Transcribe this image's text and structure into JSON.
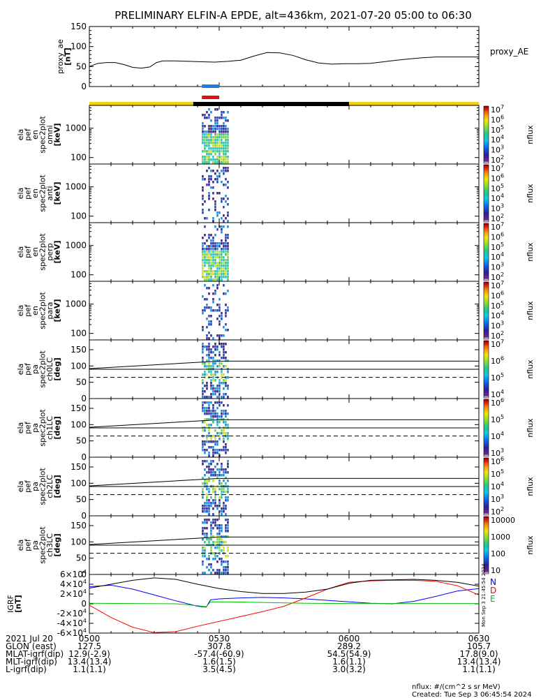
{
  "chart_data": {
    "title": "PRELIMINARY ELFIN-A EPDE, alt=436km, 2021-07-20 05:00 to 06:30",
    "type": "line",
    "x_range": [
      "05:00",
      "06:30"
    ],
    "x_tick_labels": [
      "0500",
      "0530",
      "0600",
      "0630"
    ],
    "proxy_ae": {
      "ylabel": "proxy_ae [nT]",
      "yticks": [
        "150",
        "100",
        "50",
        "0"
      ],
      "ylim": [
        0,
        150
      ],
      "legend": "proxy_AE",
      "series": [
        {
          "name": "proxy_AE",
          "x": [
            0,
            2,
            4,
            6,
            8,
            10,
            12,
            14,
            15.5,
            17,
            20,
            23,
            26,
            29,
            32,
            35,
            38,
            41,
            44,
            47,
            50,
            53,
            56,
            59,
            62,
            65,
            68,
            71,
            74,
            77,
            80,
            83,
            86,
            90
          ],
          "y": [
            50,
            58,
            60,
            60,
            55,
            48,
            46,
            49,
            60,
            64,
            64,
            63,
            62,
            61,
            63,
            66,
            76,
            85,
            84,
            78,
            67,
            59,
            56,
            57,
            57,
            58,
            62,
            66,
            69,
            72,
            74,
            74,
            74,
            74
          ]
        }
      ]
    },
    "orbit_bars": {
      "blue_interval": [
        "05:26",
        "05:30"
      ],
      "red_interval": [
        "05:26",
        "05:30"
      ],
      "yellow_segments": [
        [
          "05:00",
          "05:24"
        ],
        [
          "06:00",
          "06:30"
        ]
      ],
      "black_segment": [
        "05:24",
        "06:00"
      ]
    },
    "spectrograms": [
      {
        "label": [
          "ela",
          "pef",
          "en",
          "spec2plot",
          "omni",
          "[keV]"
        ],
        "yticks": [
          "1000",
          "100"
        ],
        "cbar_ticks": [
          "10^7",
          "10^6",
          "10^5",
          "10^4",
          "10^3",
          "10^2"
        ],
        "cbar_label": "nflux",
        "kind": "energy"
      },
      {
        "label": [
          "ela",
          "pef",
          "en",
          "spec2plot",
          "anti",
          "[keV]"
        ],
        "yticks": [
          "1000",
          "100"
        ],
        "cbar_ticks": [
          "10^7",
          "10^6",
          "10^5",
          "10^4",
          "10^3",
          "10^2"
        ],
        "cbar_label": "nflux",
        "kind": "energy"
      },
      {
        "label": [
          "ela",
          "pef",
          "en",
          "spec2plot",
          "perp",
          "[keV]"
        ],
        "yticks": [
          "1000",
          "100"
        ],
        "cbar_ticks": [
          "10^7",
          "10^6",
          "10^5",
          "10^4",
          "10^3",
          "10^2"
        ],
        "cbar_label": "nflux",
        "kind": "energy"
      },
      {
        "label": [
          "ela",
          "pef",
          "en",
          "spec2plot",
          "para",
          "[keV]"
        ],
        "yticks": [
          "1000",
          "100"
        ],
        "cbar_ticks": [
          "10^7",
          "10^6",
          "10^5",
          "10^4",
          "10^3",
          "10^2"
        ],
        "cbar_label": "nflux",
        "kind": "energy"
      },
      {
        "label": [
          "ela",
          "pef",
          "pa",
          "spec2plot",
          "ch0LC",
          "[deg]"
        ],
        "yticks": [
          "150",
          "100",
          "50",
          "0"
        ],
        "cbar_ticks": [
          "10^7",
          "10^6",
          "10^5",
          "10^4"
        ],
        "cbar_label": "nflux",
        "kind": "pitch"
      },
      {
        "label": [
          "ela",
          "pef",
          "pa",
          "spec2plot",
          "ch1LC",
          "[deg]"
        ],
        "yticks": [
          "150",
          "100",
          "50",
          "0"
        ],
        "cbar_ticks": [
          "10^6",
          "10^5",
          "10^4",
          "10^3"
        ],
        "cbar_label": "nflux",
        "kind": "pitch"
      },
      {
        "label": [
          "ela",
          "pef",
          "pa",
          "spec2plot",
          "ch2LC",
          "[deg]"
        ],
        "yticks": [
          "150",
          "100",
          "50",
          "0"
        ],
        "cbar_ticks": [
          "10^6",
          "10^5",
          "10^4",
          "10^3",
          "10^2"
        ],
        "cbar_label": "nflux",
        "kind": "pitch"
      },
      {
        "label": [
          "ela",
          "pef",
          "pa",
          "spec2plot",
          "ch3LC",
          "[deg]"
        ],
        "yticks": [
          "150",
          "100",
          "50",
          "0"
        ],
        "cbar_ticks": [
          "10000",
          "1000",
          "100",
          "10"
        ],
        "cbar_label": "nflux",
        "kind": "pitch"
      }
    ],
    "igrf": {
      "ylabel": "IGRF [nT]",
      "yticks": [
        "6×10^4",
        "4×10^4",
        "2×10^4",
        "0",
        "-2×10^4",
        "-4×10^4",
        "-6×10^4"
      ],
      "ylim": [
        -60000,
        60000
      ],
      "legend": [
        "N",
        "D",
        "E"
      ],
      "legend_colors": [
        "#0000ff",
        "#ff0000",
        "#00c000"
      ],
      "series": [
        {
          "name": "N",
          "color": "#0000ff",
          "x": [
            0,
            5,
            10,
            15,
            20,
            25,
            27,
            28,
            30,
            35,
            40,
            45,
            50,
            55,
            60,
            65,
            70,
            75,
            80,
            85,
            90
          ],
          "y": [
            35000,
            38000,
            30000,
            18000,
            6000,
            -5000,
            -7000,
            8000,
            10000,
            12000,
            13000,
            12000,
            10000,
            7000,
            4000,
            1000,
            0,
            5000,
            15000,
            26000,
            31000
          ]
        },
        {
          "name": "D",
          "color": "#ff0000",
          "x": [
            0,
            5,
            10,
            15,
            20,
            25,
            30,
            35,
            40,
            45,
            50,
            55,
            60,
            65,
            70,
            75,
            80,
            85,
            90
          ],
          "y": [
            -3000,
            -28000,
            -48000,
            -59000,
            -57000,
            -46000,
            -36000,
            -26000,
            -16000,
            -5000,
            12000,
            30000,
            44000,
            47000,
            48000,
            48000,
            46000,
            37000,
            18000
          ]
        },
        {
          "name": "E",
          "color": "#00c000",
          "x": [
            0,
            20,
            25,
            27,
            28,
            35,
            50,
            60,
            90
          ],
          "y": [
            1000,
            0,
            -4000,
            -6000,
            4000,
            3500,
            1000,
            500,
            500
          ]
        },
        {
          "name": "total",
          "color": "#000000",
          "x": [
            0,
            5,
            10,
            15,
            20,
            25,
            30,
            35,
            40,
            45,
            50,
            55,
            60,
            65,
            70,
            75,
            80,
            85,
            90
          ],
          "y": [
            32000,
            40000,
            48000,
            53000,
            50000,
            40000,
            31000,
            25000,
            21000,
            21000,
            24000,
            30000,
            42000,
            48000,
            49000,
            50000,
            48000,
            44000,
            36000
          ]
        }
      ]
    }
  },
  "footer": {
    "rows": [
      [
        "2021 Jul 20",
        "0500",
        "0530",
        "0600",
        "0630"
      ],
      [
        "GLON (east)",
        "127.5",
        "307.8",
        "289.2",
        "105.7"
      ],
      [
        "MLAT-igrf(dip)",
        "12.9(-2.9)",
        "-57.4(-60.9)",
        "54.5(54.9)",
        "17.8(9.0)"
      ],
      [
        "MLT-igrf(dip)",
        "13.4(13.4)",
        "1.6(1.5)",
        "1.6(1.1)",
        "13.4(13.4)"
      ],
      [
        "L-igrf(dip)",
        "1.1(1.1)",
        "3.5(4.5)",
        "3.0(3.2)",
        "1.1(1.1)"
      ]
    ],
    "units_note": "nflux: #/(cm^2 s sr MeV)",
    "created": "Created: Tue Sep  3 06:45:54 2024",
    "stamp": "Mon Sep  3 21:45:54 2024"
  }
}
